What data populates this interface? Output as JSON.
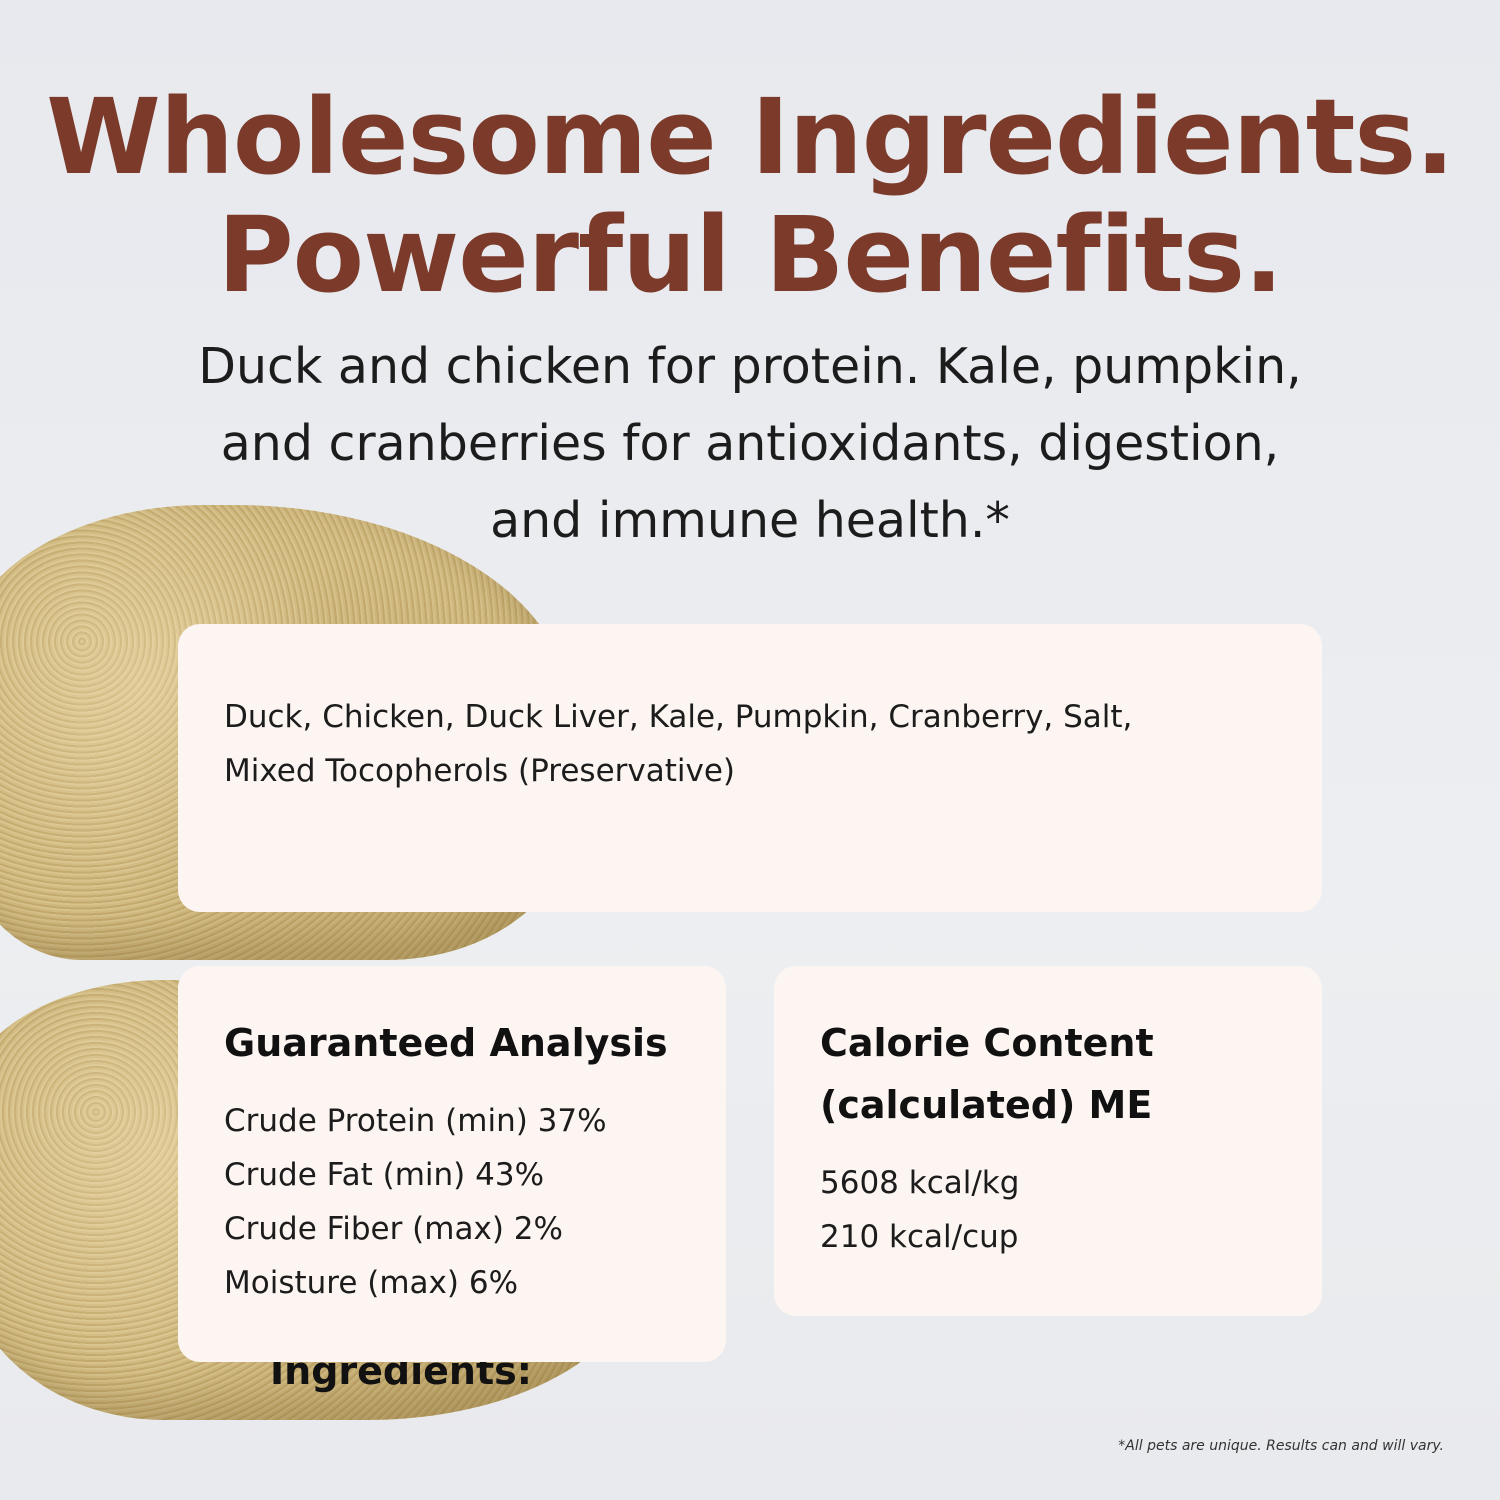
{
  "headline": {
    "line1": "Wholesome Ingredients.",
    "line2": "Powerful Benefits."
  },
  "subheadline": {
    "line1": "Duck and chicken for protein. Kale, pumpkin,",
    "line2": "and cranberries for antioxidants, digestion,",
    "line3": "and immune health.*"
  },
  "ingredients": {
    "title": "Ingredients:",
    "line1": "Duck, Chicken, Duck Liver, Kale, Pumpkin, Cranberry, Salt,",
    "line2": "Mixed Tocopherols (Preservative)"
  },
  "analysis": {
    "title": "Guaranteed Analysis",
    "items": [
      "Crude Protein (min) 37%",
      "Crude Fat (min) 43%",
      "Crude Fiber (max) 2%",
      "Moisture (max) 6%"
    ]
  },
  "calories": {
    "title_line1": "Calorie Content",
    "title_line2": "(calculated) ME",
    "items": [
      "5608 kcal/kg",
      "210 kcal/cup"
    ]
  },
  "footnote": "*All pets are unique. Results can and will vary.",
  "colors": {
    "headline": "#7b3a2a",
    "card": "#fdf5f2",
    "background": "#e9ebee"
  }
}
